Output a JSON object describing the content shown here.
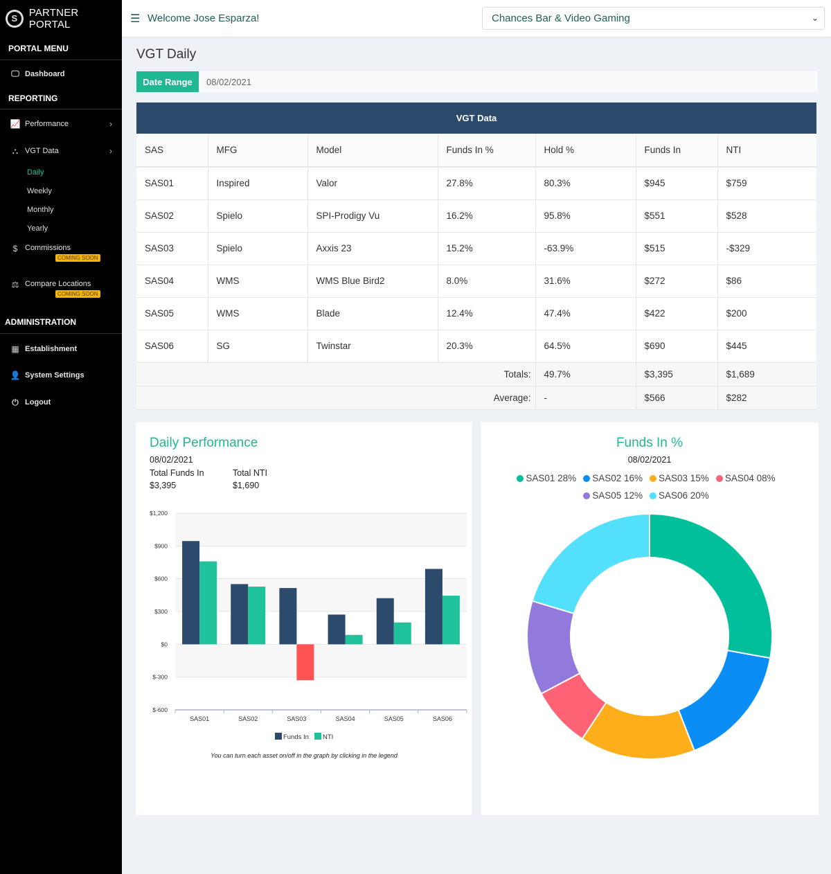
{
  "brand": {
    "name": "PARTNER PORTAL",
    "logo_letter": "S"
  },
  "sidebar": {
    "portal_menu_title": "PORTAL MENU",
    "dashboard": "Dashboard",
    "reporting_title": "REPORTING",
    "performance": "Performance",
    "vgt_data": "VGT Data",
    "sub_items": [
      "Daily",
      "Weekly",
      "Monthly",
      "Yearly"
    ],
    "commissions": "Commissions",
    "compare_locations": "Compare Locations",
    "coming_soon": "COMING SOON",
    "administration_title": "ADMINISTRATION",
    "establishment": "Establishment",
    "system_settings": "System Settings",
    "logout": "Logout"
  },
  "header": {
    "welcome": "Welcome Jose Esparza!",
    "location": "Chances Bar & Video Gaming"
  },
  "page": {
    "title": "VGT Daily",
    "date_range_label": "Date Range",
    "date_value": "08/02/2021"
  },
  "table": {
    "title": "VGT Data",
    "columns": [
      "SAS",
      "MFG",
      "Model",
      "Funds In %",
      "Hold %",
      "Funds In",
      "NTI"
    ],
    "rows": [
      [
        "SAS01",
        "Inspired",
        "Valor",
        "27.8%",
        "80.3%",
        "$945",
        "$759"
      ],
      [
        "SAS02",
        "Spielo",
        "SPI-Prodigy Vu",
        "16.2%",
        "95.8%",
        "$551",
        "$528"
      ],
      [
        "SAS03",
        "Spielo",
        "Axxis 23",
        "15.2%",
        "-63.9%",
        "$515",
        "-$329"
      ],
      [
        "SAS04",
        "WMS",
        "WMS Blue Bird2",
        "8.0%",
        "31.6%",
        "$272",
        "$86"
      ],
      [
        "SAS05",
        "WMS",
        "Blade",
        "12.4%",
        "47.4%",
        "$422",
        "$200"
      ],
      [
        "SAS06",
        "SG",
        "Twinstar",
        "20.3%",
        "64.5%",
        "$690",
        "$445"
      ]
    ],
    "totals": {
      "label": "Totals:",
      "hold": "49.7%",
      "funds_in": "$3,395",
      "nti": "$1,689"
    },
    "average": {
      "label": "Average:",
      "hold": "-",
      "funds_in": "$566",
      "nti": "$282"
    }
  },
  "perf": {
    "title": "Daily Performance",
    "date": "08/02/2021",
    "total_funds_label": "Total Funds In",
    "total_funds_value": "$3,395",
    "total_nti_label": "Total NTI",
    "total_nti_value": "$1,690",
    "note": "You can turn each asset on/off in the graph by clicking in the legend"
  },
  "pie": {
    "title": "Funds In %",
    "date": "08/02/2021"
  },
  "colors": {
    "funds_in": "#2c4a6b",
    "nti": "#1fc29a",
    "negative": "#ff5252"
  },
  "chart_data": [
    {
      "type": "bar",
      "categories": [
        "SAS01",
        "SAS02",
        "SAS03",
        "SAS04",
        "SAS05",
        "SAS06"
      ],
      "series": [
        {
          "name": "Funds In",
          "values": [
            945,
            551,
            515,
            272,
            422,
            690
          ]
        },
        {
          "name": "NTI",
          "values": [
            759,
            528,
            -329,
            86,
            200,
            445
          ]
        }
      ],
      "ylim": [
        -600,
        1200
      ],
      "yticks": [
        -600,
        -300,
        0,
        300,
        600,
        900,
        1200
      ],
      "ytick_labels": [
        "$-600",
        "$-300",
        "$0",
        "$300",
        "$600",
        "$900",
        "$1,200"
      ],
      "legend": "bottom"
    },
    {
      "type": "pie",
      "labels": [
        "SAS01 28%",
        "SAS02 16%",
        "SAS03 15%",
        "SAS04 08%",
        "SAS05 12%",
        "SAS06 20%"
      ],
      "values": [
        27.8,
        16.2,
        15.2,
        8.0,
        12.4,
        20.3
      ],
      "colors": [
        "#00bf9a",
        "#0a8ef5",
        "#fdae1a",
        "#fe6275",
        "#9279dc",
        "#52e0fc"
      ],
      "legend": "top"
    }
  ]
}
